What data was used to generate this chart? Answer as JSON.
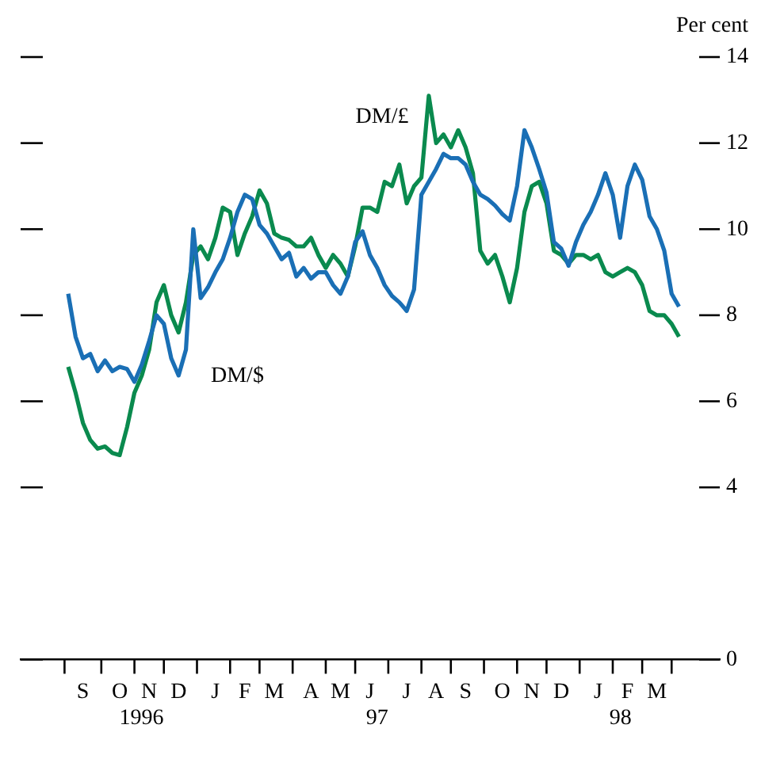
{
  "chart_data": {
    "type": "line",
    "ylabel": "Per cent",
    "legend": false,
    "grid": false,
    "categories": [
      null,
      null,
      "S",
      null,
      null,
      null,
      null,
      "O",
      null,
      null,
      null,
      "N",
      null,
      null,
      null,
      "D",
      null,
      null,
      null,
      null,
      "J",
      null,
      null,
      null,
      "F",
      null,
      null,
      null,
      "M",
      null,
      null,
      null,
      null,
      "A",
      null,
      null,
      null,
      "M",
      null,
      null,
      null,
      "J",
      null,
      null,
      null,
      null,
      "J",
      null,
      null,
      null,
      "A",
      null,
      null,
      null,
      "S",
      null,
      null,
      null,
      null,
      "O",
      null,
      null,
      null,
      "N",
      null,
      null,
      null,
      "D",
      null,
      null,
      null,
      null,
      "J",
      null,
      null,
      null,
      "F",
      null,
      null,
      null,
      "M",
      null,
      null,
      null
    ],
    "series": [
      {
        "color": "#1a6fb5",
        "values": [
          8.5,
          7.5,
          7.0,
          7.1,
          6.7,
          6.95,
          6.7,
          6.8,
          6.75,
          6.45,
          6.85,
          7.4,
          8.0,
          7.8,
          7.0,
          6.6,
          7.2,
          10.0,
          8.4,
          8.65,
          9.0,
          9.3,
          9.8,
          10.4,
          10.8,
          10.7,
          10.1,
          9.9,
          9.6,
          9.3,
          9.45,
          8.9,
          9.1,
          8.85,
          9.0,
          9.0,
          8.7,
          8.5,
          8.9,
          9.7,
          9.95,
          9.4,
          9.1,
          8.7,
          8.45,
          8.3,
          8.1,
          8.6,
          10.8,
          11.1,
          11.4,
          11.75,
          11.65,
          11.65,
          11.5,
          11.1,
          10.8,
          10.7,
          10.55,
          10.35,
          10.2,
          11.0,
          12.3,
          11.9,
          11.4,
          10.85,
          9.7,
          9.55,
          9.15,
          9.7,
          10.1,
          10.4,
          10.8,
          11.3,
          10.8,
          9.8,
          11.0,
          11.5,
          11.15,
          10.3,
          10.0,
          9.5,
          8.5,
          8.2
        ]
      },
      {
        "color": "#0a8a4e",
        "values": [
          6.8,
          6.2,
          5.5,
          5.1,
          4.9,
          4.95,
          4.8,
          4.75,
          5.4,
          6.2,
          6.6,
          7.2,
          8.3,
          8.7,
          8.0,
          7.6,
          8.3,
          9.4,
          9.6,
          9.3,
          9.8,
          10.5,
          10.4,
          9.4,
          9.9,
          10.3,
          10.9,
          10.6,
          9.9,
          9.8,
          9.75,
          9.6,
          9.6,
          9.8,
          9.4,
          9.1,
          9.4,
          9.2,
          8.9,
          9.6,
          10.5,
          10.5,
          10.4,
          11.1,
          11.0,
          11.5,
          10.6,
          11.0,
          11.2,
          13.1,
          12.0,
          12.2,
          11.9,
          12.3,
          11.9,
          11.3,
          9.5,
          9.2,
          9.4,
          8.9,
          8.3,
          9.1,
          10.4,
          11.0,
          11.1,
          10.6,
          9.5,
          9.4,
          9.2,
          9.4,
          9.4,
          9.3,
          9.4,
          9.0,
          8.9,
          9.0,
          9.1,
          9.0,
          8.7,
          8.1,
          8.0,
          8.0,
          7.8,
          7.5
        ]
      }
    ],
    "ylim": [
      0,
      14
    ],
    "yticks": [
      0,
      4,
      6,
      8,
      10,
      12,
      14
    ],
    "annotations": [
      "DM/£",
      "DM/$",
      "1996",
      "97",
      "98"
    ]
  }
}
